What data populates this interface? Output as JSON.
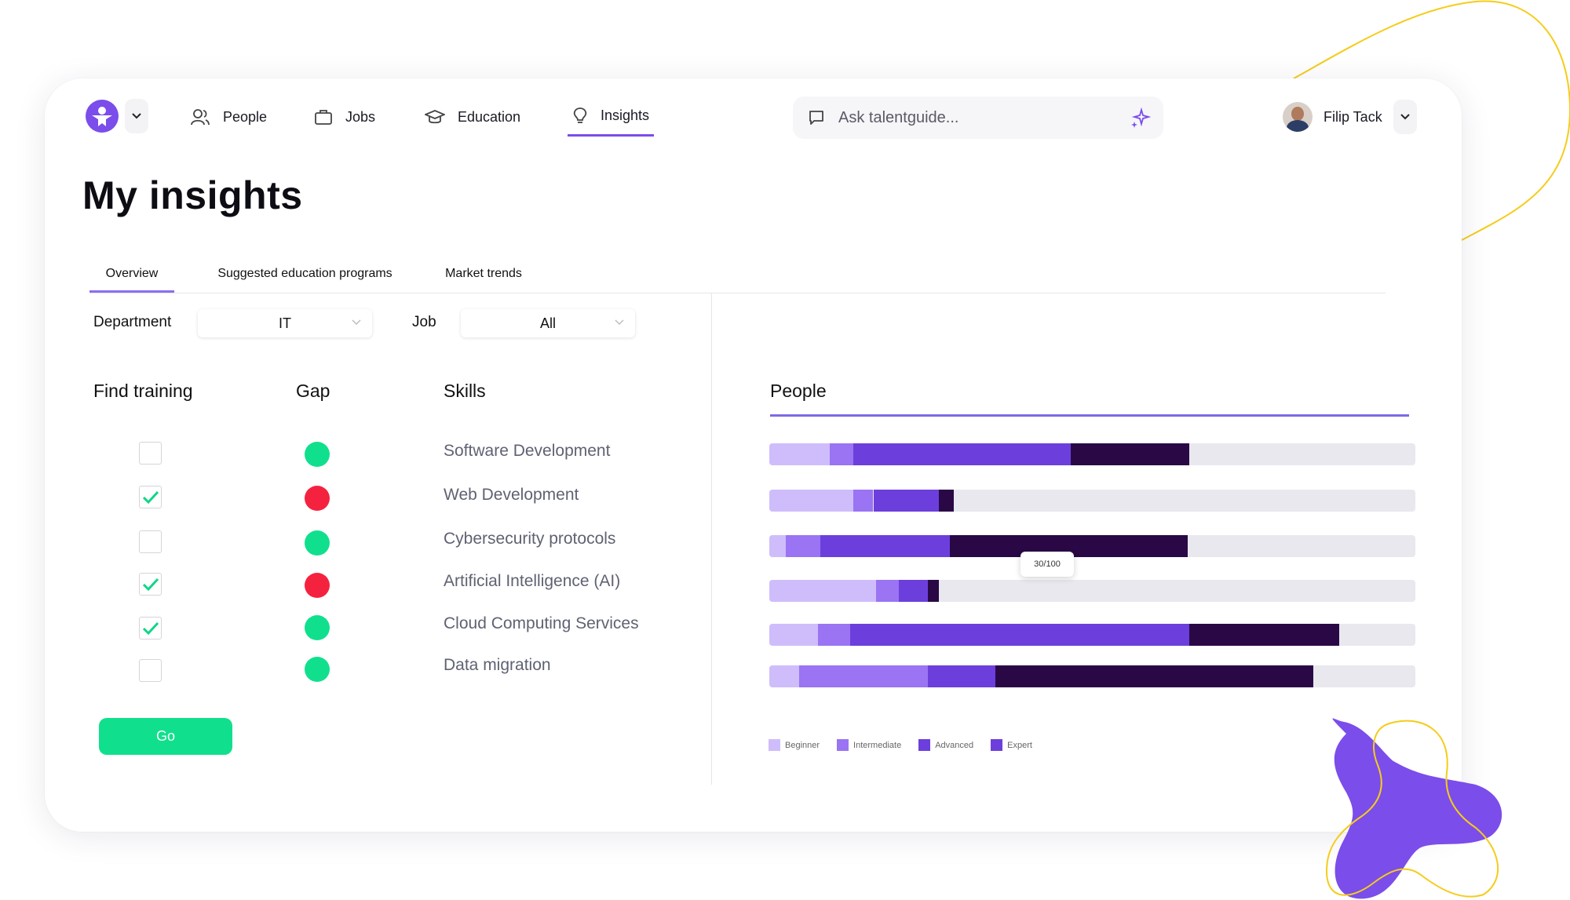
{
  "nav": {
    "items": [
      {
        "label": "People",
        "icon": "people-icon"
      },
      {
        "label": "Jobs",
        "icon": "briefcase-icon"
      },
      {
        "label": "Education",
        "icon": "graduation-cap-icon"
      },
      {
        "label": "Insights",
        "icon": "lightbulb-icon",
        "active": true
      }
    ],
    "search_placeholder": "Ask talentguide...",
    "user_name": "Filip Tack"
  },
  "page": {
    "title": "My insights"
  },
  "tabs": [
    {
      "label": "Overview",
      "active": true
    },
    {
      "label": "Suggested education programs"
    },
    {
      "label": "Market trends"
    }
  ],
  "filters": {
    "department_label": "Department",
    "department_value": "IT",
    "job_label": "Job",
    "job_value": "All"
  },
  "columns": {
    "find_training": "Find training",
    "gap": "Gap",
    "skills": "Skills",
    "people": "People"
  },
  "skills": [
    {
      "name": "Software Development",
      "checked": false,
      "gap": "green"
    },
    {
      "name": "Web Development",
      "checked": true,
      "gap": "red"
    },
    {
      "name": "Cybersecurity protocols",
      "checked": false,
      "gap": "green"
    },
    {
      "name": "Artificial Intelligence (AI)",
      "checked": true,
      "gap": "red"
    },
    {
      "name": "Cloud Computing Services",
      "checked": true,
      "gap": "green"
    },
    {
      "name": "Data migration",
      "checked": false,
      "gap": "green"
    }
  ],
  "go_label": "Go",
  "colors": {
    "accent": "#7b4dea",
    "green": "#10e08d",
    "red": "#f5223f",
    "beginner": "#cfbdfb",
    "intermediate": "#9a74f3",
    "advanced": "#6c3fdc",
    "expert": "#2a0845",
    "track": "#e8e8ee"
  },
  "chart_data": {
    "type": "bar",
    "orientation": "horizontal",
    "stacked": true,
    "xlim": [
      0,
      100
    ],
    "categories": [
      "Software Development",
      "Web Development",
      "Cybersecurity protocols",
      "Artificial Intelligence (AI)",
      "Cloud Computing Services",
      "Data migration"
    ],
    "series": [
      {
        "name": "Beginner",
        "values": [
          9.3,
          13,
          2.6,
          16.5,
          7.5,
          4.6
        ]
      },
      {
        "name": "Intermediate",
        "values": [
          3.7,
          3.1,
          5.3,
          3.6,
          5,
          19.9
        ]
      },
      {
        "name": "Advanced",
        "values": [
          33.6,
          10.2,
          20,
          4.4,
          52.5,
          10.5
        ]
      },
      {
        "name": "Expert",
        "values": [
          18.4,
          2.2,
          36.9,
          1.7,
          23.2,
          49.2
        ]
      }
    ],
    "legend_placement": "bottom-left",
    "annotation": "30/100"
  }
}
